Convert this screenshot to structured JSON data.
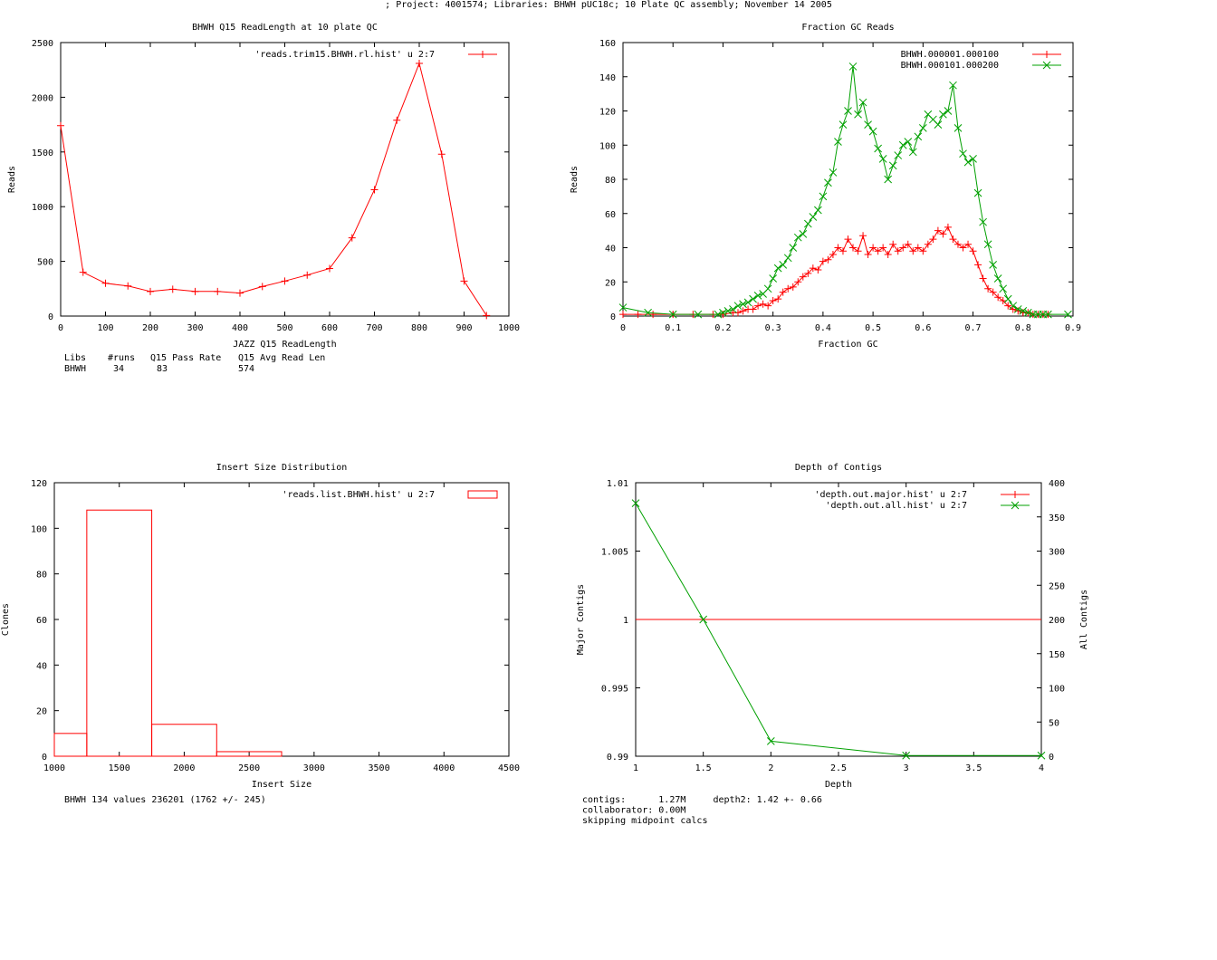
{
  "page_header": "; Project: 4001574; Libraries: BHWH pUC18c; 10 Plate QC assembly; November 14 2005",
  "colors": {
    "series1": "#ff0000",
    "series2": "#00a000",
    "axis": "#000000"
  },
  "chart_data": [
    {
      "type": "line",
      "title": "BHWH Q15 ReadLength at 10 plate QC",
      "xlabel": "JAZZ Q15 ReadLength",
      "ylabel": "Reads",
      "xlim": [
        0,
        1000
      ],
      "ylim": [
        0,
        2500
      ],
      "xticks": [
        0,
        100,
        200,
        300,
        400,
        500,
        600,
        700,
        800,
        900,
        1000
      ],
      "yticks": [
        0,
        500,
        1000,
        1500,
        2000,
        2500
      ],
      "legend_position": "top-right",
      "series": [
        {
          "name": "'reads.trim15.BHWH.rl.hist' u 2:7",
          "marker": "plus",
          "x": [
            0,
            50,
            100,
            150,
            200,
            250,
            300,
            350,
            400,
            450,
            500,
            550,
            600,
            650,
            700,
            750,
            800,
            850,
            900,
            950
          ],
          "y": [
            1740,
            400,
            300,
            275,
            225,
            245,
            225,
            225,
            210,
            270,
            320,
            375,
            435,
            715,
            1155,
            1790,
            2310,
            1480,
            320,
            5
          ]
        }
      ],
      "stats": {
        "headers": [
          "Libs",
          "#runs",
          "Q15 Pass Rate",
          "Q15 Avg Read Len"
        ],
        "row": [
          "BHWH",
          "34",
          "83",
          "574"
        ]
      }
    },
    {
      "type": "line",
      "title": "Fraction GC Reads",
      "xlabel": "Fraction GC",
      "ylabel": "Reads",
      "xlim": [
        0,
        0.9
      ],
      "ylim": [
        0,
        160
      ],
      "xticks": [
        0,
        0.1,
        0.2,
        0.3,
        0.4,
        0.5,
        0.6,
        0.7,
        0.8,
        0.9
      ],
      "yticks": [
        0,
        20,
        40,
        60,
        80,
        100,
        120,
        140,
        160
      ],
      "legend_position": "top-right",
      "series": [
        {
          "name": "BHWH.000001.000100",
          "marker": "plus",
          "x": [
            0,
            0.03,
            0.06,
            0.1,
            0.14,
            0.18,
            0.2,
            0.22,
            0.23,
            0.24,
            0.25,
            0.26,
            0.27,
            0.28,
            0.29,
            0.3,
            0.31,
            0.32,
            0.33,
            0.34,
            0.35,
            0.36,
            0.37,
            0.38,
            0.39,
            0.4,
            0.41,
            0.42,
            0.43,
            0.44,
            0.45,
            0.46,
            0.47,
            0.48,
            0.49,
            0.5,
            0.51,
            0.52,
            0.53,
            0.54,
            0.55,
            0.56,
            0.57,
            0.58,
            0.59,
            0.6,
            0.61,
            0.62,
            0.63,
            0.64,
            0.65,
            0.66,
            0.67,
            0.68,
            0.69,
            0.7,
            0.71,
            0.72,
            0.73,
            0.74,
            0.75,
            0.76,
            0.77,
            0.78,
            0.79,
            0.8,
            0.81,
            0.82,
            0.83,
            0.84,
            0.85
          ],
          "y": [
            1,
            1,
            1,
            1,
            1,
            1,
            1,
            2,
            2,
            3,
            4,
            4,
            6,
            7,
            6,
            9,
            10,
            14,
            16,
            17,
            20,
            23,
            25,
            28,
            27,
            32,
            33,
            36,
            40,
            38,
            45,
            40,
            38,
            47,
            36,
            40,
            38,
            40,
            36,
            42,
            38,
            40,
            42,
            38,
            40,
            38,
            42,
            45,
            50,
            48,
            52,
            45,
            42,
            40,
            42,
            38,
            30,
            22,
            16,
            14,
            11,
            9,
            6,
            4,
            3,
            2,
            2,
            1,
            1,
            1,
            1
          ]
        },
        {
          "name": "BHWH.000101.000200",
          "marker": "cross",
          "x": [
            0,
            0.05,
            0.1,
            0.15,
            0.19,
            0.2,
            0.21,
            0.22,
            0.23,
            0.24,
            0.25,
            0.26,
            0.27,
            0.28,
            0.29,
            0.3,
            0.31,
            0.32,
            0.33,
            0.34,
            0.35,
            0.36,
            0.37,
            0.38,
            0.39,
            0.4,
            0.41,
            0.42,
            0.43,
            0.44,
            0.45,
            0.46,
            0.47,
            0.48,
            0.49,
            0.5,
            0.51,
            0.52,
            0.53,
            0.54,
            0.55,
            0.56,
            0.57,
            0.58,
            0.59,
            0.6,
            0.61,
            0.62,
            0.63,
            0.64,
            0.65,
            0.66,
            0.67,
            0.68,
            0.69,
            0.7,
            0.71,
            0.72,
            0.73,
            0.74,
            0.75,
            0.76,
            0.77,
            0.78,
            0.79,
            0.8,
            0.81,
            0.82,
            0.83,
            0.84,
            0.85,
            0.89
          ],
          "y": [
            5,
            2,
            1,
            1,
            1,
            2,
            3,
            4,
            6,
            7,
            8,
            10,
            12,
            13,
            16,
            22,
            28,
            30,
            34,
            40,
            46,
            48,
            54,
            58,
            62,
            70,
            78,
            84,
            102,
            112,
            120,
            146,
            118,
            125,
            112,
            108,
            98,
            92,
            80,
            88,
            94,
            100,
            102,
            96,
            105,
            110,
            118,
            115,
            112,
            118,
            120,
            135,
            110,
            95,
            90,
            92,
            72,
            55,
            42,
            30,
            22,
            16,
            10,
            6,
            4,
            3,
            2,
            1,
            1,
            1,
            1,
            1
          ]
        }
      ]
    },
    {
      "type": "bar",
      "title": "Insert Size Distribution",
      "xlabel": "Insert Size",
      "ylabel": "Clones",
      "xlim": [
        1000,
        4500
      ],
      "ylim": [
        0,
        120
      ],
      "xticks": [
        1000,
        1500,
        2000,
        2500,
        3000,
        3500,
        4000,
        4500
      ],
      "yticks": [
        0,
        20,
        40,
        60,
        80,
        100,
        120
      ],
      "legend_position": "top-right",
      "series": [
        {
          "name": "'reads.list.BHWH.hist' u 2:7",
          "bins": [
            [
              1000,
              1250
            ],
            [
              1250,
              1750
            ],
            [
              1750,
              2250
            ],
            [
              2250,
              2750
            ]
          ],
          "values": [
            10,
            108,
            14,
            2
          ]
        }
      ],
      "annotation": "BHWH 134 values 236201 (1762 +/- 245)"
    },
    {
      "type": "line",
      "title": "Depth of Contigs",
      "xlabel": "Depth",
      "ylabel": "Major Contigs",
      "y2label": "All Contigs",
      "xlim": [
        1,
        4
      ],
      "ylim": [
        0.99,
        1.01
      ],
      "y2lim": [
        0,
        400
      ],
      "xticks": [
        1,
        1.5,
        2,
        2.5,
        3,
        3.5,
        4
      ],
      "xtick_labels": [
        "1",
        "1.5",
        "2",
        "2.5",
        "3",
        "3.5",
        "4"
      ],
      "yticks": [
        0.99,
        0.995,
        1,
        1.005,
        1.01
      ],
      "ytick_labels": [
        "0.99",
        "0.995",
        "1",
        "1.005",
        "1.01"
      ],
      "y2ticks": [
        0,
        50,
        100,
        150,
        200,
        250,
        300,
        350,
        400
      ],
      "legend_position": "top-right",
      "series": [
        {
          "name": "'depth.out.major.hist' u 2:7",
          "marker": "plus",
          "axis": "y",
          "x": [
            1,
            4
          ],
          "y": [
            1,
            1
          ],
          "show_markers": false
        },
        {
          "name": "'depth.out.all.hist' u 2:7",
          "marker": "cross",
          "axis": "y2",
          "x": [
            1,
            1.5,
            2,
            3,
            4
          ],
          "y": [
            370,
            200,
            22,
            1,
            1
          ]
        }
      ],
      "stats_lines": [
        "contigs:      1.27M     depth2: 1.42 +- 0.66",
        "collaborator: 0.00M",
        "skipping midpoint calcs"
      ]
    }
  ]
}
